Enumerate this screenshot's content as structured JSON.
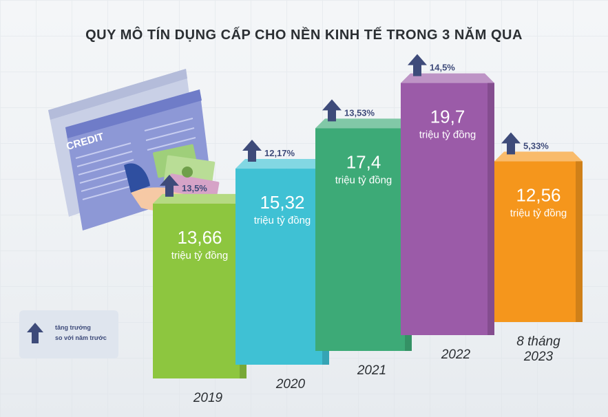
{
  "title": "QUY MÔ TÍN DỤNG CẤP CHO NỀN KINH TẾ TRONG 3 NĂM QUA",
  "legend": {
    "line1": "tăng trưởng",
    "line2": "so với năm trước",
    "icon": "up-arrow-icon"
  },
  "illustration": {
    "window_label": "CREDIT",
    "icon": "hand-with-money-icon"
  },
  "chart_data": {
    "type": "bar",
    "categories": [
      "2019",
      "2020",
      "2021",
      "2022",
      "8 tháng 2023"
    ],
    "values": [
      13.66,
      15.32,
      17.4,
      19.7,
      12.56
    ],
    "value_labels": [
      "13,66",
      "15,32",
      "17,4",
      "19,7",
      "12,56"
    ],
    "unit": "triệu tỷ đồng",
    "growth_labels": [
      "13,5%",
      "12,17%",
      "13,53%",
      "14,5%",
      "5,33%"
    ],
    "growth_values": [
      13.5,
      12.17,
      13.53,
      14.5,
      5.33
    ],
    "colors": [
      "#8dc63f",
      "#3fc1d4",
      "#3daa77",
      "#9b5ba8",
      "#f5961c"
    ],
    "growth_color": "#3e4b7a"
  }
}
